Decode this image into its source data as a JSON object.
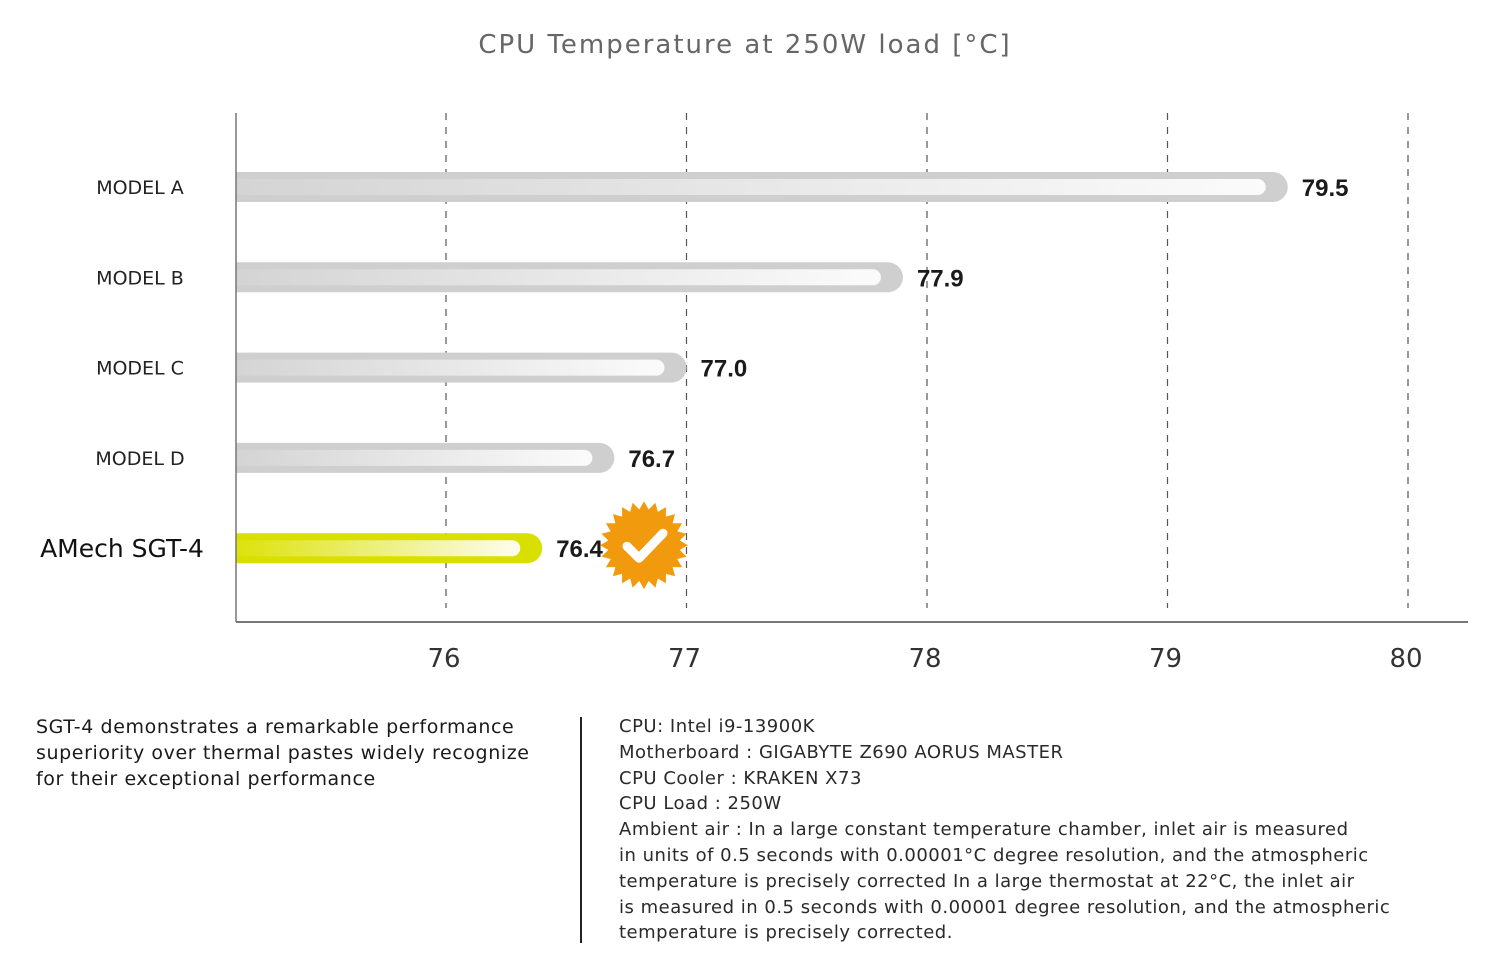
{
  "chart_data": {
    "type": "bar",
    "orientation": "horizontal",
    "title": "CPU Temperature at 250W load [°C]",
    "xlabel": "",
    "ylabel": "",
    "categories": [
      "MODEL A",
      "MODEL B",
      "MODEL C",
      "MODEL D",
      "AMech SGT-4"
    ],
    "values": [
      79.5,
      77.9,
      77.0,
      76.7,
      76.4
    ],
    "value_labels": [
      "79.5",
      "77.9",
      "77.0",
      "76.7",
      "76.4"
    ],
    "highlight": "AMech SGT-4",
    "xlim": [
      75.13,
      80.25
    ],
    "xticks": [
      76,
      77,
      78,
      79,
      80
    ],
    "xtick_labels": [
      "76",
      "77",
      "78",
      "79",
      "80"
    ],
    "grid": "vertical-dashed",
    "legend": "none",
    "badge": "check-badge-icon",
    "colors": {
      "bar_gray": "#cfcfcf",
      "bar_gray_inner": "#f6f6f6",
      "bar_highlight": "#d9e000",
      "bar_highlight_inner": "#fbfbe8",
      "badge": "#f29a0e",
      "grid": "#555555",
      "axis": "#777777"
    }
  },
  "description": "SGT-4 demonstrates a remarkable performance superiority over thermal pastes widely recognize for their exceptional performance",
  "description_lines": [
    "SGT-4 demonstrates a remarkable performance",
    "superiority over thermal pastes widely recognize",
    "for their exceptional performance"
  ],
  "specs": {
    "cpu": "CPU: Intel i9-13900K",
    "motherboard": "Motherboard : GIGABYTE Z690 AORUS MASTER",
    "cooler": "CPU Cooler : KRAKEN X73",
    "load": "CPU Load : 250W",
    "ambient_lines": [
      "Ambient air : In a large constant temperature chamber, inlet air is measured",
      "in units of 0.5 seconds with 0.00001°C degree resolution, and the atmospheric",
      "temperature is precisely corrected In a large thermostat at 22°C, the inlet air",
      "is measured in 0.5 seconds with 0.00001 degree resolution, and the atmospheric",
      "temperature is precisely corrected."
    ]
  }
}
